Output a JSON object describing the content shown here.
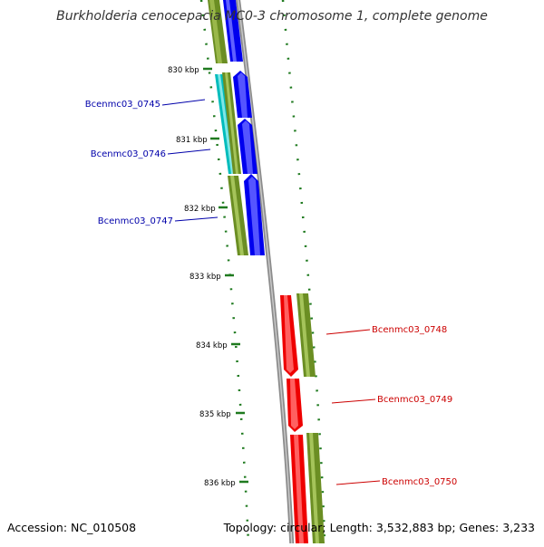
{
  "title": "Burkholderia cenocepacia MC0-3 chromosome 1, complete genome",
  "accession_text": "Accession: NC_010508",
  "summary_text": "Topology: circular; Length: 3,532,883 bp; Genes: 3,233",
  "colors": {
    "backbone": "#8c8c8c",
    "tick": "#1f7a1f",
    "forward_gene": "#0000ee",
    "reverse_gene": "#ee0000",
    "cds_olive": "#6b8e23",
    "cyan_feature": "#00c8c8",
    "label_blue": "#0000aa",
    "label_red": "#cc0000"
  },
  "kbp_labels": [
    "830 kbp",
    "831 kbp",
    "832 kbp",
    "833 kbp",
    "834 kbp",
    "835 kbp",
    "836 kbp"
  ],
  "genes": [
    {
      "label": "Bcenmc03_0745",
      "strand": "forward"
    },
    {
      "label": "Bcenmc03_0746",
      "strand": "forward"
    },
    {
      "label": "Bcenmc03_0747",
      "strand": "forward"
    },
    {
      "label": "Bcenmc03_0748",
      "strand": "reverse"
    },
    {
      "label": "Bcenmc03_0749",
      "strand": "reverse"
    },
    {
      "label": "Bcenmc03_0750",
      "strand": "reverse"
    }
  ]
}
